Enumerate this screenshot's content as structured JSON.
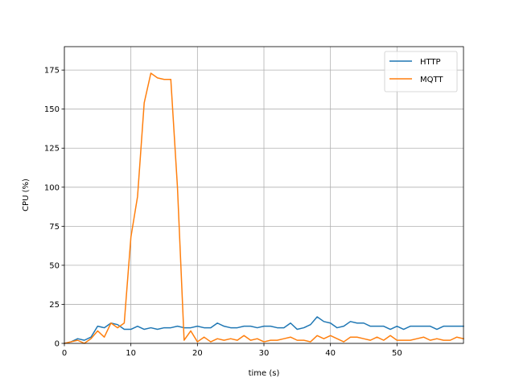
{
  "chart_data": {
    "type": "line",
    "title": "",
    "xlabel": "time (s)",
    "ylabel": "CPU (%)",
    "xlim": [
      0,
      60
    ],
    "ylim": [
      0,
      190
    ],
    "xticks": [
      0,
      10,
      20,
      30,
      40,
      50
    ],
    "yticks": [
      0,
      25,
      50,
      75,
      100,
      125,
      150,
      175
    ],
    "grid": true,
    "legend_position": "top-right",
    "series": [
      {
        "name": "HTTP",
        "color": "#1f77b4",
        "x": [
          0,
          1,
          2,
          3,
          4,
          5,
          6,
          7,
          8,
          9,
          10,
          11,
          12,
          13,
          14,
          15,
          16,
          17,
          18,
          19,
          20,
          21,
          22,
          23,
          24,
          25,
          26,
          27,
          28,
          29,
          30,
          31,
          32,
          33,
          34,
          35,
          36,
          37,
          38,
          39,
          40,
          41,
          42,
          43,
          44,
          45,
          46,
          47,
          48,
          49,
          50,
          51,
          52,
          53,
          54,
          55,
          56,
          57,
          58,
          59,
          60
        ],
        "values": [
          0,
          1,
          3,
          2,
          4,
          11,
          10,
          13,
          12,
          9,
          9,
          11,
          9,
          10,
          9,
          10,
          10,
          11,
          10,
          10,
          11,
          10,
          10,
          13,
          11,
          10,
          10,
          11,
          11,
          10,
          11,
          11,
          10,
          10,
          13,
          9,
          10,
          12,
          17,
          14,
          13,
          10,
          11,
          14,
          13,
          13,
          11,
          11,
          11,
          9,
          11,
          9,
          11,
          11,
          11,
          11,
          9,
          11,
          11,
          11,
          11
        ]
      },
      {
        "name": "MQTT",
        "color": "#ff7f0e",
        "x": [
          0,
          1,
          2,
          3,
          4,
          5,
          6,
          7,
          8,
          9,
          10,
          11,
          12,
          13,
          14,
          15,
          16,
          17,
          18,
          19,
          20,
          21,
          22,
          23,
          24,
          25,
          26,
          27,
          28,
          29,
          30,
          31,
          32,
          33,
          34,
          35,
          36,
          37,
          38,
          39,
          40,
          41,
          42,
          43,
          44,
          45,
          46,
          47,
          48,
          49,
          50,
          51,
          52,
          53,
          54,
          55,
          56,
          57,
          58,
          59,
          60
        ],
        "values": [
          0,
          1,
          2,
          0,
          3,
          8,
          4,
          13,
          10,
          13,
          68,
          94,
          154,
          173,
          170,
          169,
          169,
          100,
          2,
          8,
          1,
          4,
          1,
          3,
          2,
          3,
          2,
          5,
          2,
          3,
          1,
          2,
          2,
          3,
          4,
          2,
          2,
          1,
          5,
          3,
          5,
          3,
          1,
          4,
          4,
          3,
          2,
          4,
          2,
          5,
          2,
          2,
          2,
          3,
          4,
          2,
          3,
          2,
          2,
          4,
          3
        ]
      }
    ]
  }
}
